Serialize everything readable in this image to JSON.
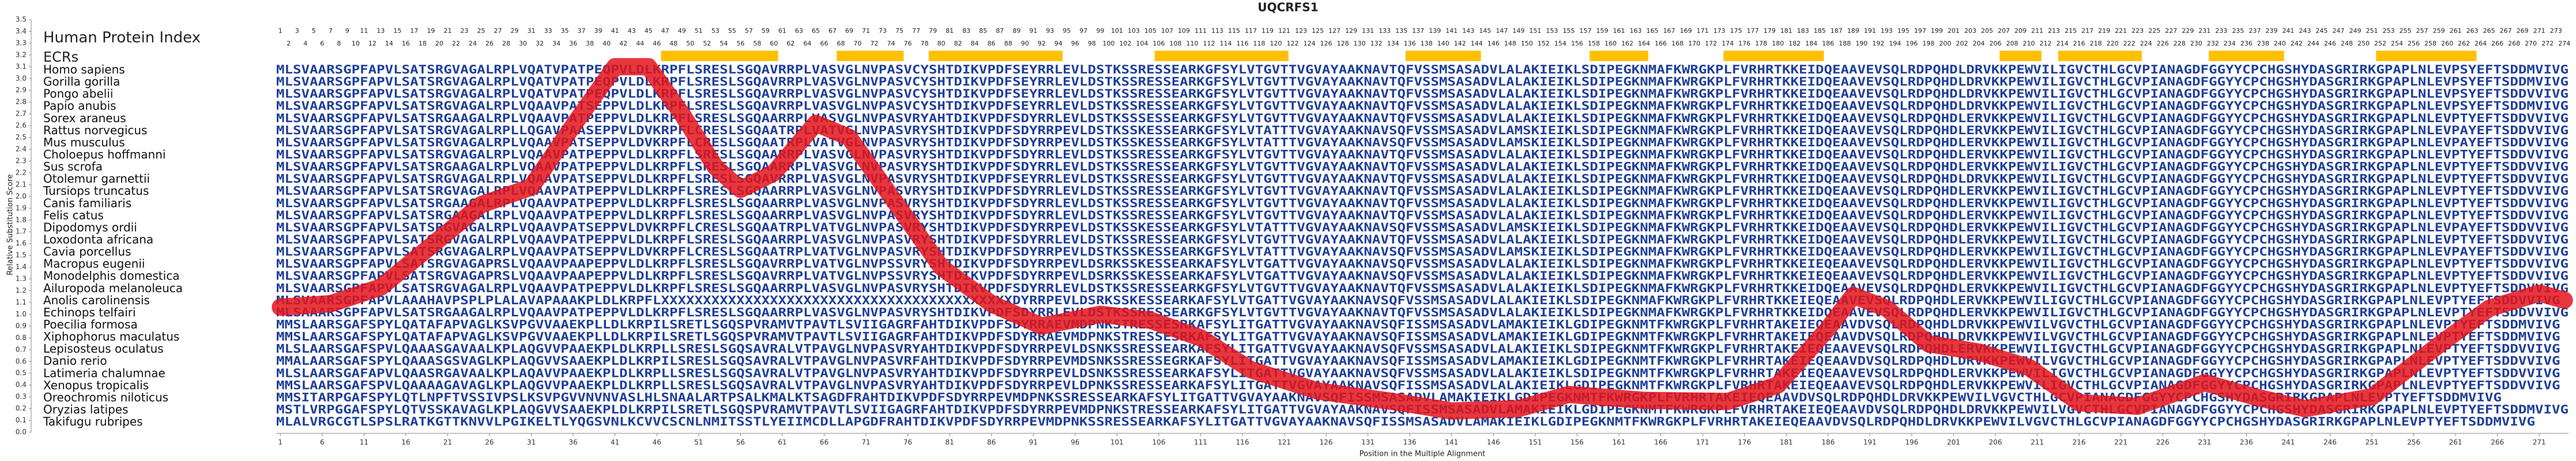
{
  "chart_data": {
    "type": "line",
    "title": "UQCRFS1",
    "index_label": "Human Protein Index",
    "ecr_label": "ECRs",
    "human_index": [
      1,
      2,
      3,
      4,
      5,
      6,
      7,
      8,
      9,
      10,
      11,
      12,
      13,
      14,
      15,
      16,
      17,
      18,
      19,
      20,
      21,
      22,
      23,
      24,
      25,
      26,
      27,
      28,
      29,
      30,
      31,
      32,
      33,
      34,
      35,
      36,
      37,
      38,
      39,
      40,
      41,
      42,
      43,
      44,
      45,
      46,
      47,
      48,
      49,
      50,
      51,
      52,
      53,
      54,
      55,
      56,
      57,
      58,
      59,
      60,
      61,
      62,
      63,
      64,
      65,
      66,
      67,
      68,
      69,
      70,
      71,
      72,
      73,
      74,
      75,
      76,
      77,
      78,
      79,
      80,
      81,
      82,
      83,
      84,
      85,
      86,
      87,
      88,
      89,
      90,
      91,
      92,
      93,
      94,
      95,
      96,
      97,
      98,
      99,
      100,
      101,
      102,
      103,
      104,
      105,
      106,
      107,
      108,
      109,
      110,
      111,
      112,
      113,
      114,
      115,
      116,
      117,
      118,
      119,
      120,
      121,
      122,
      123,
      124,
      125,
      126,
      127,
      128,
      129,
      130,
      131,
      132,
      133,
      134,
      135,
      136,
      137,
      138,
      139,
      140,
      141,
      142,
      143,
      144,
      145,
      146,
      147,
      148,
      149,
      150,
      151,
      152,
      153,
      154,
      155,
      156,
      157,
      158,
      159,
      160,
      161,
      162,
      163,
      164,
      165,
      166,
      167,
      168,
      169,
      170,
      171,
      172,
      173,
      174,
      175,
      176,
      177,
      178,
      179,
      180,
      181,
      182,
      183,
      184,
      185,
      186,
      187,
      188,
      189,
      190,
      191,
      192,
      193,
      194,
      195,
      196,
      197,
      198,
      199,
      200,
      201,
      202,
      203,
      204,
      205,
      206,
      207,
      208,
      209,
      210,
      211,
      212,
      213,
      214,
      215,
      216,
      217,
      218,
      219,
      220,
      221,
      222,
      223,
      224,
      225,
      226,
      227,
      228,
      229,
      230,
      231,
      232,
      233,
      234,
      235,
      236,
      237,
      238,
      239,
      240,
      241,
      242,
      243,
      244,
      245,
      246,
      247,
      248,
      249,
      250,
      251,
      252,
      253,
      254,
      255,
      256,
      257,
      258,
      259,
      260,
      261,
      262,
      263,
      264,
      265,
      266,
      267,
      268,
      269,
      270,
      271,
      272,
      273,
      274
    ],
    "ecrs": [
      [
        47,
        60
      ],
      [
        68,
        75
      ],
      [
        79,
        94
      ],
      [
        106,
        121
      ],
      [
        136,
        144
      ],
      [
        158,
        164
      ],
      [
        174,
        185
      ],
      [
        207,
        211
      ],
      [
        214,
        223
      ],
      [
        232,
        240
      ],
      [
        252,
        263
      ]
    ],
    "ecr_color": "#ffc000",
    "species": [
      "Homo sapiens",
      "Gorilla gorilla",
      "Pongo abelii",
      "Papio anubis",
      "Sorex araneus",
      "Rattus norvegicus",
      "Mus musculus",
      "Choloepus hoffmanni",
      "Sus scrofa",
      "Otolemur garnettii",
      "Tursiops truncatus",
      "Canis familiaris",
      "Felis catus",
      "Dipodomys ordii",
      "Loxodonta africana",
      "Cavia porcellus",
      "Macropus eugenii",
      "Monodelphis domestica",
      "Ailuropoda melanoleuca",
      "Anolis carolinensis",
      "Echinops telfairi",
      "Poecilia formosa",
      "Xiphophorus maculatus",
      "Lepisosteus oculatus",
      "Danio rerio",
      "Latimeria chalumnae",
      "Xenopus tropicalis",
      "Oreochromis niloticus",
      "Oryzias latipes",
      "Takifugu rubripes"
    ],
    "sequences": [
      "MLSVAARSGPFAPVLSATSRGVAGALRPLVQATVPATPEQPVLDLKRPFLSRESLSGQAVRRPLVASVGLNVPASVCYSHTDIKVPDFSEYRRLEVLDSTKSSRESSEARKGFSYLVTGVTTVGVAYAAKNAVTQFVSSMSASADVLALAKIEIKLSDIPEGKNMAFKWRGKPLFVRHRTKKEIDQEAAVEVSQLRDPQHDLDRVKKPEWVILIGVCTHLGCVPIANAGDFGGYYCPCHGSHYDASGRIRKGPAPLNLEVPSYEFTSDDMVIVG",
      "MLSVAARSGPFAPVLSATSRGVAGALRPLVQATVPATPEQPVLDLKRPFLSRESLSGQAVRRPLVASVGLNVPASVCYSHTDIKVPDFSEYRRLEVLDSTKSSRESSEARKGFSYLVTGVTTVGVAYAAKNAVTQFVSSMSASADVLALAKIEIKLSDIPEGKNMAFKWRGKPLFVRHRTKKEIDQEAAVEVSQLRDPQHDLDRVKKPEWVILIGVCTHLGCVPIANAGDFGGYYCPCHGSHYDASGRIRKGPAPLNLEVPSYEFTSDDMVIVG",
      "MLSVAARSGPFAPVLSATSRGVAGALRPLVQATVPATPEQPVLDLKRPFLSRESLSGQAVRRPLVASVGLNVPASVCYSHTDIKVPDFSEYRRLEVLDSTKSSRESSEARKGFSYLVTGVTTVGVAYAAKNAVTQFVSSMSASADVLALAKIEIKLSDIPEGKNMAFKWRGKPLFVRHRTKKEIDQEAAVEVSQLRDPQHDLDRVKKPEWVILIGVCTHLGCVPIANAGDFGGYYCPCHGSHYDASGRIRKGPAPLNLEVPSYEFTSDDVVIVG",
      "MLSVAARSGPFAPVLSATSRGVAGALRPLVQAAVPATSEPPVLDLKRPFLSRESLSGQAVRRPLVASVGLNVPASVCYSHTDIKVPDFSEYRRLEVLDSTKSSRESSEARKGFSYLVTGVTTVGVAYAAKNAVTQFVSSMSASADVLALAKIEIKLSDIPEGKNMAFKWRGKPLFVRHRTKKEIDQEAAVEVSQLRDPQHDLDRVKKPEWVILIGVCTHLGCVPIANAGDFGGYYCPCHGSHYDASGRIRKGPAPLNLEVPSYEFTSDDMVIVG",
      "MLSVAARSGPFAPVLSATSRGAAGALRPLVQAAVPATPEPPVLDLKRPFLSRESLSGQAARRPLVASVGLNVPASVRYAHTDIKVPDFSDYRRLEVLDSTKSSSESSEARKGFSYLVTGVTTVGVAYAAKNAVTQFVSSMSASADVLALAKIEIKLSDIPEGKNMAFKWRGKPLFVRHRTKKEIDQEAAVEVSQLRDPQHDLERVKKPEWVILIGVCTHLGCVPIANAGDFGGYYCPCHGSHYDASGRIRKGPAPLNLEVPTYEFTSDDVVIVG",
      "MLSVAARSGPFAPVLSATSRGVAGALRPLLQGAVPAASEPPVLDVKRPFLCRESLSGQAATRPLVATVGLNVPASVRYSHTDIKVPDFSDYRRPEVLDSTKSSKESSEARKGFSYLVTATTTVGVAYAAKNAVSQFVSSMSASADVLAMSKIEIKLSDIPEGKNMAFKWRGKPLFVRHRTKKEIDQEAAVEVSQLRDPQHDLERVKKPEWVILIGVCTHLGCVPIANAGDFGGYYCPCHGSHYDASGRIRKGPAPLNLEVPAYEFTSDDVVIVG",
      "MLSVAARSGPFAPVLSATSRGVAGALRPLVQAAVPATSEPPVLDVKRPFLCRESLSGQAATRPLVATVGLNVPASVRYSHTDIKVPDFSDYRRPEVLDSTKSSKESSEARKGFSYLVTATTTVGVAYAAKNAVSQFVSSMSASADVLAMSKIEIKLSDIPEGKNMAFKWRGKPLFVRHRTKKEIDQEAAVEVSQLRDPQHDLERVKKPEWVILIGVCTHLGCVPIANAGDFGGYYCPCHGSHYDASGRIRKGPAPLNLEVPAYEFTSDDVVIVG",
      "MLSVAARSGPFAPVLSATSRGVAGALRPLVQAAVPATPEPPVLDLKRPFLSRESLSGQAARRPLVASVGLNVPASVRYSHTDIKVPDFSDYRRLEVLDSTKSSRESSEARKGFSYLVTGVTTVGVAYAAKNAVTQFVSSMSASADVLALAKIEIKLSDIPEGKNMAFKWRGKPLFVRHRTKKEIDQEAAVEVSQLRDPQHDLERVKKPEWVILIGVCTHLGCVPIANAGDFGGYYCPCHGSHYDASGRIRKGPAPLNLEVPTYEFTSDDVVIVG",
      "MLSVAARSGPFAPVLSATSRGAAGALRPLVQAAVPATPEPPVLDLKRPFLSRESLSGQAARRPLVASVGLNVPASVRYSHTDIKVPDFSDYRRLEVLDSTKSSRESSEARKGFSYLVTGVTTVGVAYAAKNAVTQFVSSMSASADVLALAKIEIKLSDIPEGKNMAFKWRGKPLFVRHRTKKEIDQEAAVEVSQLRDPQHDLERVKKPEWVILIGVCTHLGCVPIANAGDFGGYYCPCHGSHYDASGRIRKGPAPLNLEVPTYEFTSDDVVIVG",
      "MLSVAARSGPFAPVLSATSRGVAGALRPLVQAAVPATSEPPVLDLKRPFLSRESLSGQAVRRPLVASVGLNVPASVRYSHTDIKVPDFSEYRRLEVLDSTKSSRESSEARKGFSYLVTGVTTVGVAYAAKNAVTQFVSSMSASADVLALAKIEIKLSDIPEGKNMAFKWRGKPLFVRHRTKKEIDQEAAVEVSQLRDPQHDLDRVKKPEWVILIGVCTHLGCVPIANAGDFGGYYCPCHGSHYDASGRIRKGPAPLNLEVPTYEFTSDDVVIVG",
      "MLSVAARSGPFAPVLSATSRGVAGALRPLVQAAVPATPEPPVLDLKRPFLSRESLSGQAARRPLVASVGLNVPASVRYSHTDIKVPDFSDYRRLEVLDSTKSSRESSEARKGFSYLVTGVTTVGVAYAAKNAVTQFVSSMSASADVLALAKIEIKLSDIPEGKNMAFKWRGKPLFVRHRTKKEIDQEAAVEVSQLRDPQHDLERVKKPEWVILIGVCTHLGCVPIANAGDFGGYYCPCHGSHYDASGRIRKGPAPLNLEVPTYEFTSDDVVIVG",
      "MLSVAARSGPFAPVLSATSRGAAGALRPLVQAAVPATPEPPVLDLKRPFLSRESLSGQAARRPLVASVGLNVPASVRYSHTDIKVPDFSDYRRLEVLDSTKSSRESSEARKGFSYLVTGVTTVGVAYAAKNAVTQFVSSMSASADVLALAKIEIKLSDIPEGKNMAFKWRGKPLFVRHRTKKEIDQEAAVEVSQLRDPQHDLERVKKPEWVILIGVCTHLGCVPIANAGDFGGYYCPCHGSHYDASGRIRKGPAPLNLEVPTYEFTSDDVVIVG",
      "MLSVAARSGPFAPVLSATSRGAAGALRPLVQAAVPATPEPPVLDLKRPFLSRESLSGQAARRPLVASVGLNVPASVRYSHTDIKVPDFSDYRRLEVLDSTKSSRESSEARKGFSYLVTGVTTVGVAYAAKNAVTQFVSSMSASADVLALAKIEIKLSDIPEGKNMAFKWRGKPLFVRHRTKKEIDQEAAVEVSQLRDPQHDLERVKKPEWVILIGVCTHLGCVPIANAGDFGGYYCPCHGSHYDASGRIRKGPAPLNLEVPTYEFTSDDVVIVG",
      "MLSVAARSGPFAPVLSATSRGVAGALRPLVQAAVPATSEPPVLDVKRPFLCRESLSGQAATRPLVATVGLNVPASVRYSHTDIKVPDFSDYRRPEVLDSTKSSKESSEARKGFSYLVTATTTVGVAYAAKNAVSQFVSSMSASADVLAMSKIEIKLSDIPEGKNMAFKWRGKPLFVRHRTKKEIDQEAAVEVSQLRDPQHDLERVKKPEWVILIGVCTHLGCVPIANAGDFGGYYCPCHGSHYDASGRIRKGPAPLNLEVPAYEFTSDDVVIVG",
      "MLSVAARSGPFAPVLSATSRGVAGALRPLVQAAVPATPEPPVLDLKRPFLSRESLSGQAARRPLVASVGLNVPASVRYSHTDIKVPDFSDYRRLEVLDSTKSSRESSEARKGFSYLVTGVTTVGVAYAAKNAVTQFVSSMSASADVLALAKIEIKLSDIPEGKNMAFKWRGKPLFVRHRTKKEIDQEAAVEVSQLRDPQHDLERVKKPEWVILIGVCTHLGCVPIANAGDFGGYYCPCHGSHYDASGRIRKGPAPLNLEVPTYEFTSDDVVIVG",
      "MLSVAARSGPFAPVLSATSRGVAGALRPLVQAAVPATSEPPVLDVKRPFLCRESLSGQAATRPLVATVGLNVPASVRYSHTDIKVPDFSDYRRPEVLDSTKSSKESSEARKGFSYLVTATTTVGVAYAAKNAVSQFVSSMSASADVLAMSKIEIKLSDIPEGKNMAFKWRGKPLFVRHRTKKEIDQEAAVEVSQLRDPQHDLERVKKPEWVILIGVCTHLGCVPIANAGDFGGYYCPCHGSHYDASGRIRKGPAPLNLEVPAYEFTSDDVVIVG",
      "MLSVAARSGPFAPVLSATSRGVAGAPRSLVQAAVPAAPEPPVLDLKRPFLSRESLSGQAVRRPLVATVGLNVPSSVRYSHTDIKVPDFSDYRRPEVLDSRKSSKESSEARKAFSYLVTGATTVGVAYAAKNAVSQFVSSMSASADVLALAKIEIKLSDIPEGKNMAFKWRGKPLFVRHRTKKEIEQEAAVEVSQLRDPQHDLERVKKPEWVILIGVCTHLGCVPIANAGDFGGYYCPCHGSHYDASGRIRKGPAPLNLEVPTYEFTSDDVVIVG",
      "MLSVAARSGPFAPVLSATSRGVAGAPRSLVQAAVPAAPEPPVLDLKRPFLSRESLSGQAVRRPLVATVGLNVPSSVRYSHTDIKVPDFSDYRRPEVLDSRKSSKESSEARKAFSYLVTGATTVGVAYAAKNAVSQFVSSMSASADVLALAKIEIKLSDIPEGKNMAFKWRGKPLFVRHRTKKEIEQEAAVEVSQLRDPQHDLERVKKPEWVILIGVCTHLGCVPIANAGDFGGYYCPCHGSHYDASGRIRKGPAPLNLEVPTYEFTSDDVVIVG",
      "MLSVAARSGPFAPVLSATSRGVAGALRPLVQAAVPATPEPPVLDLKRPFLSRESLSGQAARRPLVASVGLNVPASVRYSHTDIKVPDFSDYRRLEVLDSTKSSRESSEARKGFSYLVTGVTTVGVAYAAKNAVTQFVSSMSASADVLALAKIEIKLSDIPEGKNMAFKWRGKPLFVRHRTKKEIDQEAAVEVSQLRDPQHDLERVKKPEWVILIGVCTHLGCVPIANAGDFGGYYCPCHGSHYDASGRIRKGPAPLNLEVPTYEFTSDDVVIVG",
      "MLSVAARSGPFAPVLAAAHAVPSPLPLALAVAPAAAKPLDLKRPFLXXXXXXXXXXXXXXXXXXXXXXXXXXXXXXXXXXXXXXXXXXDYRRPEVLDSRKSSKESSEARKAFSYLVTGATTVGVAYAAKNAVSQFVSSMSASADVLALAKIEIKLSDIPEGKNMAFKWRGKPLFVRHRTKKEIEQEAAVEVSQLRDPQHDLERVKKPEWVILIGVCTHLGCVPIANAGDFGGYYCPCHGSHYDASGRIRKGPAPLNLEVPTYEFTSDDVVIVG",
      "MLSAAARSGPFAPVLSATSRGAAGALRPLVQAAVPATPEPPVLDLKRPFLSRESLSGQAARRPLVASVGLNVPASVRYSHTDIKVPDFSDYRRLEVLDSTKSSRESSEARKGFSYLVTGVTTVGVAYAAKNAVTQFVSSMSASADVLALAKIEIKLSDIPEGKNMAFKWRGKPLFVRHRTKKEIDQEAAVEVSQLRDPQHDLERVKKPEWVILIGVCTHLGCVPIANAGDFGGYYCPCHGSHYDASGRIRKGPAPLNLEVPTYEFTSDDVVIVG",
      "MMSLAARSGAFSPYLQATAFAPVAGLKSVPGVVAAEKPLLDLKRPILSRETLSGQSPVRAMVTPAVTLSVIIGAGRFAHTDIKVPDFSDYRRAEVMDPNKSTRESSESRKAFSYLITGATTVGVAYAAKNAVSQFISSMSASADVLAMAKIEIKLGDIPEGKNMTFKWRGKPLFVRHRTAKEIEQEAAVDVSQLRDPQHDLDRVKKPEWVILVGVCTHLGCVPIANAGDFGGYYCPCHGSHYDASGRIRKGPAPLNLEVPTYEFTSDDMVIVG",
      "MMSLAARSGAFSPYLQATAFAPVAGLKSVPGVVAAEKPLLDLKRPILSRETLSGQSPVRAMVTPAVTLSVIIGAGRFAHTDIKVPDFSDYRRAEVMDPNKSTRESSESRKAFSYLITGATTVGVAYAAKNAVSQFISSMSASADVLAMAKIEIKLGDIPEGKNMTFKWRGKPLFVRHRTAKEIEQEAAVDVSQLRDPQHDLDRVKKPEWVILVGVCTHLGCVPIANAGDFGGYYCPCHGSHYDASGRIRKGPAPLNLEVPTYEFTSDDMVIVG",
      "MLSLAARSGAFSPVLQAAASGAVAALKPLAQGVVPAAEKPLDLKRPLLSRESLSGQSAVRALVTPAVGLNVPASVRYAHTDIKVPDFSDYRRPEVLDSNKSSRESSEARKAFSYLITGATTVGVAYAAKNAVSQFVSSMSASADVLALAKIEIKLSDIPEGKNMTFKWRGKPLFVRHRTAKEIEQEAAVEVSQLRDPQHDLERVKKPEWVILIGVCTHLGCVPIANAGDFGGYYCPCHGSHYDASGRIRKGPAPLNLEVPTYEFTSDDVVIVG",
      "MMALAARSGAFSPYLQAAASGSVAGLKPLAQGVVSAAEKPLDLKRPILSRESLSGQSAVRALVTPAVGLNVPASVRFAHTDIKVPDFSDYRRPEVMDSNKSSRESSEGRKAFSYLITGATTVGVAYAAKNAVSQFISSMSASADVLAMAKIEIKLGDIPEGKNMTFKWRGKPLFVRHRTAKEIEQEAAVDVSQLRDPQHDLDRVKKPEWVILVGVCTHLGCVPIANAGDFGGYYCPCHGSHYDASGRIRKGPAPLNLEVPTYEFTSDDVVIVG",
      "MLSLAARSGAFAPVLQAASRGAVAALKPLAQAVVPAAEKPLDLKRPLLSRESLSGQSAVRALVTPAVGLNVPASVRYAHTDIKVPDFSDYRRPEVLDSNKSSRESSEARKAFSYLITGATTVGVAYAAKNAVSQFVSSMSASADVLALAKIEIKLSDIPEGKNMTFKWRGKPLFVRHRTAKEIEQEAAVEVSQLRDPQHDLERVKKPEWVILIGVCTHLGCVPIANAGDFGGYYCPCHGSHYDASGRIRKGPAPLNLEVPTYEFTSDDVVIVG",
      "MMSLAARSGAFSPVLQAAAAGAVAGLKPLAQGVVPAAEKPLDLKRPLLSRESLSGQSAVRALVTPAVGLNVPASVRYAHTDIKVPDFSDYRRPEVLDPNKSSRESSEARKAFSYLITGATTVGVAYAAKNAVSQFISSMSASADVLALAKIEIKLGDIPEGKNMTFKWRGKPLFVRHRTAKEIEQEAAVEVSQLRDPQHDLERVKKPEWVILIGVCTHLGCVPIANAGDFGGYYCPCHGSHYDASGRIRKGPAPLNLEVPTYEFTSDDVVIVG",
      "MMSITARPGAFSPYLQTLNPFTVSSIVPSLKSVPGVVNVNVASLHLSNAALARTPSALKMALKTSAGDFRAHTDIKVPDFSDYRRPEVMDPNKSSRESSEARKAFSYLITGATTVGVAYAAKNAVSQFISSMSASADVLAMAKIEIKLGDIPEGKNMTFKWRGKPLFVRHRTAKEIEQEAAVDVSQLRDPQHDLDRVKKPEWVILVGVCTHLGCVPIANAGDFGGYYCPCHGSHYDASGRIRKGPAPLNLEVPTYEFTSDDMVIVG",
      "MSTLVRPGGAFSPYLQTVSSKAVAGLKPLAQGVVSAAEKPLDLKRPILSRETLSGQSPVRAMVTPAVTLSVIIGAGRFAHTDIKVPDFSDYRRPEVMDPNKSTRESSEARKAFSYLITGATTVGVAYAAKNAVSQFISSMSASADVLAMAKIEIKLGDIPEGKNMTFKWRGKPLFVRHRTAKEIEQEAAVDVSQLRDPQHDLDRVKKPEWVILVGVCTHLGCVPIANAGDFGGYYCPCHGSHYDASGRIRKGPAPLNLEVPTYEFTSDDMVIVG",
      "MLALVRGCGTLSPSLRATKGTTKNVVLPGIKELTLYQGSVNLKCVVCSCNLNMITSSTLYEIIMCDLLAPGDFRAHTDIKVPDFSDYRRPEVMDPNKSSRESSEARKAFSYLITGATTVGVAYAAKNAVSQFISSMSASADVLAMAKIEIKLGDIPEGKNMTFKWRGKPLFVRHRTAKEIEQEAAVDVSQLRDPQHDLDRVKKPEWVILVGVCTHLGCVPIANAGDFGGYYCPCHGSHYDASGRIRKGPAPLNLEVPTYEFTSDDMVIVG"
    ],
    "xlabel": "Position in the Multiple Alignment",
    "ylabel": "Relative Substitution Score",
    "xlim": [
      1,
      274
    ],
    "ylim": [
      0,
      3.5
    ],
    "xticks": [
      1,
      6,
      11,
      16,
      21,
      26,
      31,
      36,
      41,
      46,
      51,
      56,
      61,
      66,
      71,
      76,
      81,
      86,
      91,
      96,
      101,
      106,
      111,
      116,
      121,
      126,
      131,
      136,
      141,
      146,
      151,
      156,
      161,
      166,
      171,
      176,
      181,
      186,
      191,
      196,
      201,
      206,
      211,
      216,
      221,
      226,
      231,
      236,
      241,
      246,
      251,
      256,
      261,
      266,
      271
    ],
    "yticks": [
      {
        "value": 0,
        "label": "0.0"
      },
      0.1,
      0.2,
      0.3,
      0.4,
      0.5,
      0.6,
      0.7,
      0.8,
      0.9,
      {
        "value": 1,
        "label": "1.0"
      },
      1.1,
      1.2,
      1.3,
      1.4,
      1.5,
      1.6,
      1.7,
      1.8,
      1.9,
      {
        "value": 2,
        "label": "2.0"
      },
      2.1,
      2.2,
      2.3,
      2.4,
      2.5,
      2.6,
      2.7,
      2.8,
      2.9,
      {
        "value": 3,
        "label": "3.0"
      },
      3.1,
      3.2,
      3.3,
      3.4,
      3.5
    ],
    "x": [
      1,
      7,
      13,
      19,
      25,
      31,
      36,
      41,
      45,
      49,
      53,
      56,
      60,
      65,
      69,
      74,
      80,
      86,
      92,
      99,
      105,
      111,
      117,
      125,
      135,
      141,
      149,
      155,
      164,
      174,
      180,
      186,
      189,
      193,
      198,
      204,
      210,
      216,
      223,
      231,
      237,
      243,
      251,
      259,
      265,
      271,
      274
    ],
    "values": [
      1.06,
      1.09,
      1.23,
      1.58,
      1.93,
      2.08,
      2.6,
      3.1,
      3.1,
      2.7,
      2.25,
      2.06,
      2.2,
      2.62,
      2.5,
      2.0,
      1.4,
      1.09,
      0.9,
      1.0,
      0.95,
      0.8,
      0.53,
      0.35,
      0.25,
      0.18,
      0.2,
      0.32,
      0.27,
      0.26,
      0.4,
      0.88,
      1.16,
      1.05,
      0.75,
      0.68,
      0.55,
      0.25,
      0.22,
      0.42,
      0.3,
      0.2,
      0.3,
      0.74,
      1.05,
      1.18,
      1.12
    ],
    "color": "#e3141b"
  }
}
